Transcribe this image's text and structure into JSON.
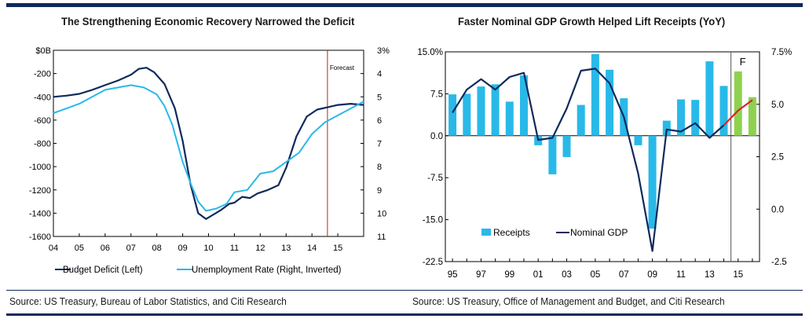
{
  "colors": {
    "navy": "#0f2a5c",
    "cyan": "#29b9e8",
    "green": "#8fd14f",
    "red": "#d7262c",
    "forecast_line": "#b22222",
    "divider": "#555555"
  },
  "chart_data": [
    {
      "type": "line",
      "title": "The Strengthening Economic Recovery Narrowed the Deficit",
      "source": "Source: US Treasury, Bureau of Labor Statistics, and Citi Research",
      "x_ticks": [
        "04",
        "05",
        "06",
        "07",
        "08",
        "09",
        "10",
        "11",
        "12",
        "13",
        "14",
        "15"
      ],
      "xlim": [
        2004.0,
        2016.0
      ],
      "left_axis": {
        "ylim": [
          -1600,
          0
        ],
        "ticks": [
          0,
          -200,
          -400,
          -600,
          -800,
          -1000,
          -1200,
          -1400,
          -1600
        ],
        "tick_labels": [
          "$0B",
          "-200",
          "-400",
          "-600",
          "-800",
          "-1000",
          "-1200",
          "-1400",
          "-1600"
        ]
      },
      "right_axis": {
        "ylim": [
          3,
          11
        ],
        "inverted": true,
        "ticks": [
          3,
          4,
          5,
          6,
          7,
          8,
          9,
          10,
          11
        ],
        "tick_labels": [
          "3%",
          "4",
          "5",
          "6",
          "7",
          "8",
          "9",
          "10",
          "11"
        ]
      },
      "forecast": {
        "x": 2014.6,
        "label": "Forecast"
      },
      "series": [
        {
          "name": "Budget Deficit (Left)",
          "axis": "left",
          "color": "#0f2a5c",
          "x": [
            2004.0,
            2004.5,
            2005.0,
            2005.5,
            2006.0,
            2006.5,
            2007.0,
            2007.3,
            2007.6,
            2007.9,
            2008.3,
            2008.7,
            2009.0,
            2009.3,
            2009.6,
            2009.9,
            2010.2,
            2010.5,
            2010.8,
            2011.0,
            2011.3,
            2011.6,
            2011.9,
            2012.3,
            2012.7,
            2013.0,
            2013.4,
            2013.8,
            2014.2,
            2014.6,
            2015.0,
            2015.5,
            2016.0
          ],
          "values": [
            -400,
            -390,
            -375,
            -340,
            -300,
            -260,
            -210,
            -160,
            -150,
            -190,
            -290,
            -500,
            -780,
            -1150,
            -1400,
            -1450,
            -1410,
            -1370,
            -1320,
            -1310,
            -1260,
            -1270,
            -1230,
            -1200,
            -1160,
            -1010,
            -740,
            -570,
            -510,
            -490,
            -470,
            -460,
            -470
          ]
        },
        {
          "name": "Unemployment Rate (Right, Inverted)",
          "axis": "right",
          "color": "#29b9e8",
          "x": [
            2004.0,
            2004.5,
            2005.0,
            2005.5,
            2006.0,
            2006.5,
            2007.0,
            2007.5,
            2008.0,
            2008.3,
            2008.6,
            2009.0,
            2009.3,
            2009.6,
            2009.9,
            2010.3,
            2010.7,
            2011.0,
            2011.5,
            2012.0,
            2012.5,
            2013.0,
            2013.5,
            2014.0,
            2014.5,
            2015.0,
            2015.5,
            2016.0
          ],
          "values": [
            5.7,
            5.5,
            5.3,
            5.0,
            4.7,
            4.6,
            4.5,
            4.6,
            4.9,
            5.4,
            6.2,
            7.8,
            8.7,
            9.5,
            9.9,
            9.8,
            9.6,
            9.1,
            9.0,
            8.3,
            8.2,
            7.8,
            7.4,
            6.6,
            6.1,
            5.8,
            5.5,
            5.2
          ]
        }
      ],
      "legend": [
        "Budget Deficit (Left)",
        "Unemployment Rate (Right, Inverted)"
      ]
    },
    {
      "type": "bar",
      "title": "Faster Nominal GDP Growth Helped Lift Receipts (YoY)",
      "source": "Source: US Treasury, Office of Management and Budget, and Citi Research",
      "categories": [
        "95",
        "96",
        "97",
        "98",
        "99",
        "00",
        "01",
        "02",
        "03",
        "04",
        "05",
        "06",
        "07",
        "08",
        "09",
        "10",
        "11",
        "12",
        "13",
        "14",
        "15",
        "16"
      ],
      "x_tick_labels": [
        "95",
        "97",
        "99",
        "01",
        "03",
        "05",
        "07",
        "09",
        "11",
        "13",
        "15"
      ],
      "left_axis": {
        "ylim": [
          -22.5,
          15.0
        ],
        "ticks": [
          15.0,
          7.5,
          0.0,
          -7.5,
          -15.0,
          -22.5
        ],
        "tick_labels": [
          "15.0%",
          "7.5",
          "0.0",
          "-7.5",
          "-15.0",
          "-22.5"
        ]
      },
      "right_axis": {
        "ylim": [
          -2.5,
          7.5
        ],
        "ticks": [
          7.5,
          5.0,
          2.5,
          0.0,
          -2.5
        ],
        "tick_labels": [
          "7.5%",
          "5.0",
          "2.5",
          "0.0",
          "-2.5"
        ]
      },
      "forecast": {
        "after_category": "14",
        "label": "F"
      },
      "series": [
        {
          "name": "Receipts",
          "axis": "left",
          "color": "#29b9e8",
          "forecast_color": "#8fd14f",
          "forecast_from_index": 20,
          "values": [
            7.4,
            7.5,
            8.8,
            9.2,
            6.1,
            10.8,
            -1.7,
            -6.9,
            -3.8,
            5.5,
            14.6,
            11.8,
            6.7,
            -1.7,
            -16.6,
            2.7,
            6.5,
            6.4,
            13.3,
            8.9,
            11.5,
            6.9
          ]
        },
        {
          "name": "Nominal GDP",
          "axis": "right",
          "color": "#0f2a5c",
          "forecast_color": "#d7262c",
          "forecast_from_index": 19,
          "values": [
            4.6,
            5.7,
            6.2,
            5.7,
            6.3,
            6.5,
            3.3,
            3.4,
            4.8,
            6.6,
            6.7,
            6.0,
            4.4,
            1.7,
            -2.0,
            3.8,
            3.7,
            4.1,
            3.4,
            4.0,
            4.7,
            5.2
          ]
        }
      ],
      "legend": [
        "Receipts",
        "Nominal GDP"
      ]
    }
  ]
}
